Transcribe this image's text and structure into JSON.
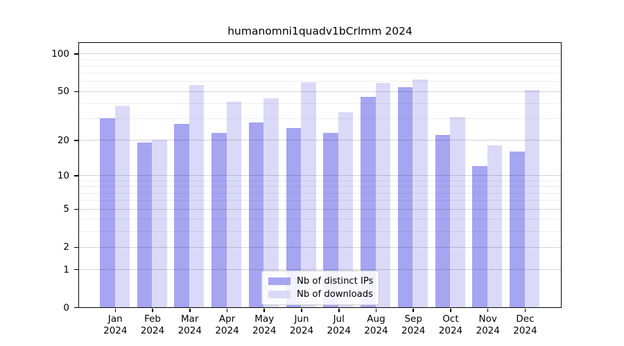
{
  "title": "humanomni1quadv1bCrlmm 2024",
  "colors": {
    "bar_distinct_ips": "#a5a5f2",
    "bar_downloads": "#dadaf8",
    "axis": "#000000"
  },
  "legend": {
    "items": [
      {
        "label": "Nb of distinct IPs",
        "color_key": "bar_distinct_ips"
      },
      {
        "label": "Nb of downloads",
        "color_key": "bar_downloads"
      }
    ]
  },
  "chart_data": {
    "type": "bar",
    "title": "humanomni1quadv1bCrlmm 2024",
    "categories": [
      "Jan",
      "Feb",
      "Mar",
      "Apr",
      "May",
      "Jun",
      "Jul",
      "Aug",
      "Sep",
      "Oct",
      "Nov",
      "Dec"
    ],
    "year_label": "2024",
    "series": [
      {
        "name": "Nb of distinct IPs",
        "values": [
          30,
          19,
          27,
          23,
          28,
          25,
          23,
          45,
          54,
          22,
          12,
          16
        ]
      },
      {
        "name": "Nb of downloads",
        "values": [
          38,
          20,
          56,
          41,
          44,
          59,
          34,
          58,
          62,
          31,
          18,
          51
        ]
      }
    ],
    "yscale": "log1p",
    "ylim": [
      0,
      125
    ],
    "yticks": [
      0,
      1,
      2,
      5,
      10,
      20,
      50,
      100
    ],
    "minor_yticks": [
      3,
      4,
      6,
      7,
      8,
      9,
      30,
      40,
      60,
      70,
      80,
      90
    ],
    "xlabel": "",
    "ylabel": "",
    "grid": "on",
    "legend_position": "lower center"
  }
}
